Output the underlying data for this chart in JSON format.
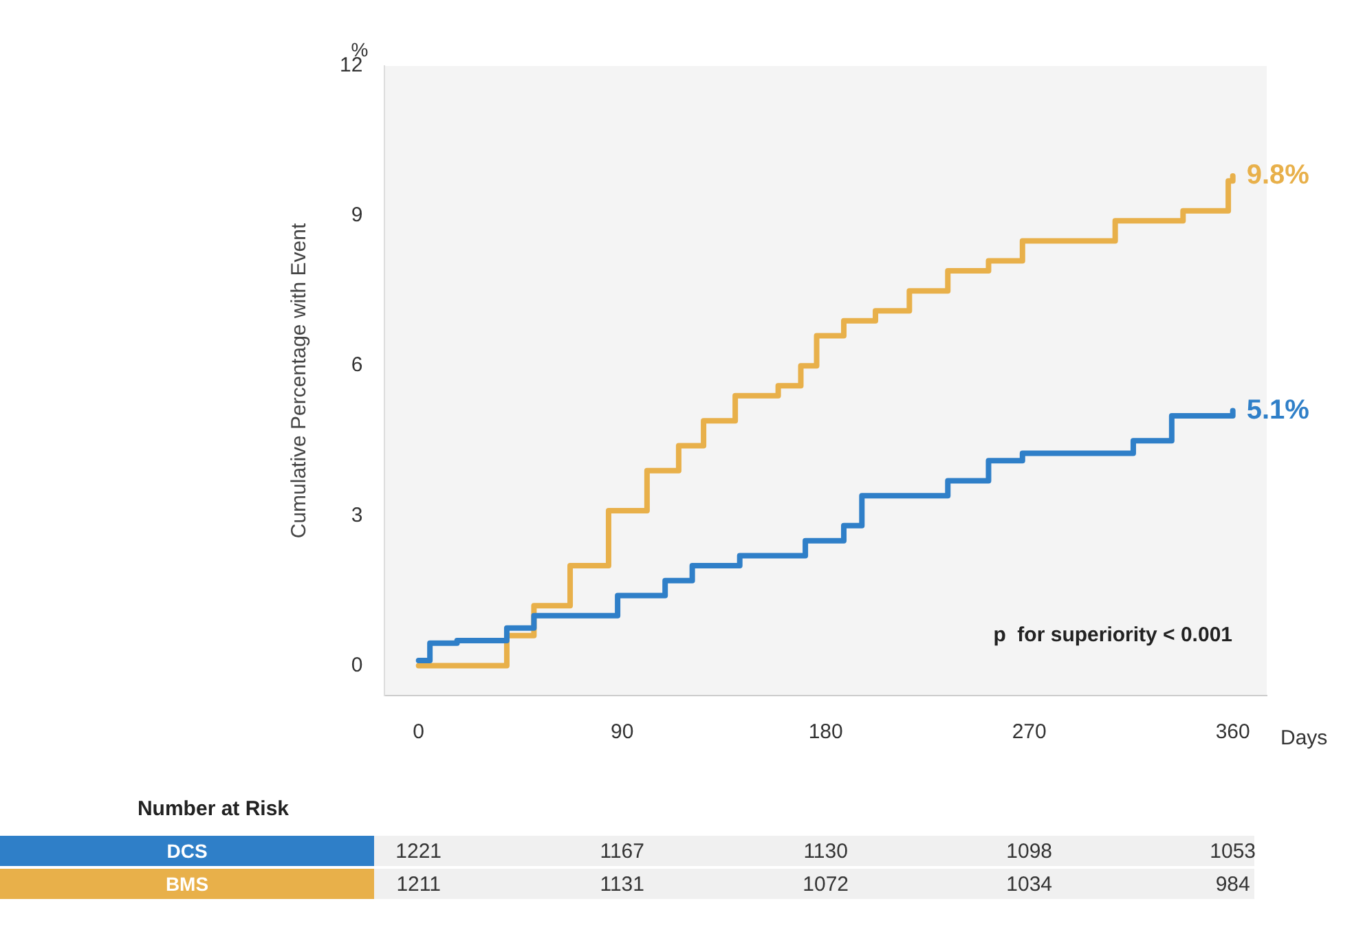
{
  "chart_data": {
    "type": "step",
    "xlabel": "Days",
    "ylabel": "Cumulative Percentage with Event",
    "xlim": [
      -15,
      375
    ],
    "xticks": [
      0,
      90,
      180,
      270,
      360
    ],
    "ylim": [
      -0.6,
      12
    ],
    "yticks": [
      0,
      3,
      6,
      9,
      12
    ],
    "grid": false,
    "legend": "bottom left",
    "series": [
      {
        "name": "DCS",
        "color": "#2f7fc8",
        "x": [
          0,
          5,
          17,
          39,
          51,
          80,
          88,
          109,
          121,
          142,
          171,
          188,
          196,
          221,
          234,
          252,
          267,
          316,
          333,
          360
        ],
        "values": [
          0.1,
          0.45,
          0.5,
          0.75,
          1.0,
          1.0,
          1.4,
          1.7,
          2.0,
          2.2,
          2.5,
          2.8,
          3.4,
          3.4,
          3.7,
          4.1,
          4.25,
          4.5,
          5.0,
          5.1
        ],
        "value_labels": [
          null,
          null,
          null,
          null,
          null,
          null,
          null,
          null,
          null,
          null,
          null,
          null,
          null,
          null,
          null,
          null,
          null,
          null,
          null,
          "5.1%"
        ]
      },
      {
        "name": "BMS",
        "color": "#e8b04a",
        "x": [
          0,
          39,
          51,
          67,
          84,
          101,
          115,
          126,
          140,
          159,
          169,
          176,
          188,
          202,
          217,
          234,
          252,
          267,
          308,
          338,
          358,
          360
        ],
        "values": [
          0.0,
          0.6,
          1.2,
          2.0,
          3.1,
          3.9,
          4.4,
          4.9,
          5.4,
          5.6,
          6.0,
          6.6,
          6.9,
          7.1,
          7.5,
          7.9,
          8.1,
          8.5,
          8.9,
          9.1,
          9.7,
          9.8
        ],
        "value_labels": [
          null,
          null,
          null,
          null,
          null,
          null,
          null,
          null,
          null,
          null,
          null,
          null,
          null,
          null,
          null,
          null,
          null,
          null,
          null,
          null,
          null,
          "9.8%"
        ]
      }
    ],
    "annotations": [
      "p  for superiority < 0.001",
      "%",
      "Number at Risk",
      "1221",
      "1167",
      "1130",
      "1098",
      "1053",
      "1211",
      "1131",
      "1072",
      "1034",
      "984"
    ]
  }
}
